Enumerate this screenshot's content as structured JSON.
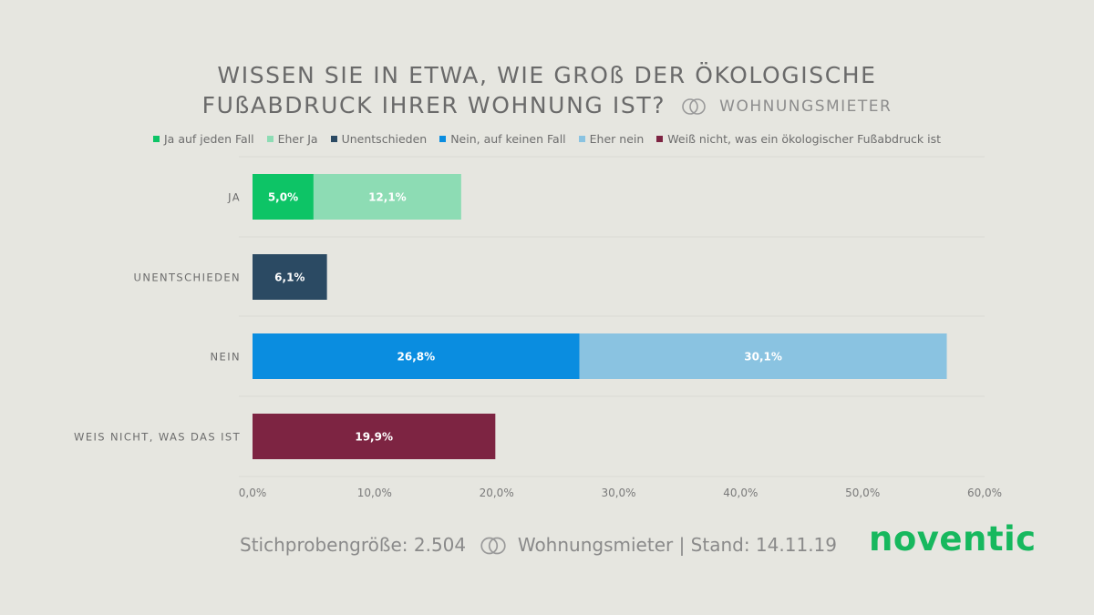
{
  "header": {
    "title_line1": "WISSEN SIE IN ETWA, WIE GROß DER ÖKOLOGISCHE",
    "title_line2": "FUßABDRUCK IHRER WOHNUNG IST?",
    "subtitle": "WOHNUNGSMIETER",
    "subtitle_icon": "two-circles-icon"
  },
  "legend": [
    {
      "label": "Ja auf jeden Fall",
      "color": "#0dc466"
    },
    {
      "label": "Eher Ja",
      "color": "#8ddcb4"
    },
    {
      "label": "Unentschieden",
      "color": "#2b4a63"
    },
    {
      "label": "Nein, auf keinen Fall",
      "color": "#0a8de0"
    },
    {
      "label": "Eher nein",
      "color": "#8ac3e1"
    },
    {
      "label": "Weiß nicht, was ein ökologischer Fußabdruck ist",
      "color": "#7d2442"
    }
  ],
  "chart_data": {
    "type": "bar",
    "orientation": "horizontal",
    "stacked": true,
    "categories": [
      "JA",
      "UNENTSCHIEDEN",
      "NEIN",
      "WEIS NICHT, WAS DAS IST"
    ],
    "series": [
      {
        "name": "Ja auf jeden Fall",
        "color": "#0dc466",
        "values": [
          5.0,
          0,
          0,
          0
        ],
        "labels": [
          "5,0%",
          "",
          "",
          ""
        ]
      },
      {
        "name": "Eher Ja",
        "color": "#8ddcb4",
        "values": [
          12.1,
          0,
          0,
          0
        ],
        "labels": [
          "12,1%",
          "",
          "",
          ""
        ]
      },
      {
        "name": "Unentschieden",
        "color": "#2b4a63",
        "values": [
          0,
          6.1,
          0,
          0
        ],
        "labels": [
          "",
          "6,1%",
          "",
          ""
        ]
      },
      {
        "name": "Nein, auf keinen Fall",
        "color": "#0a8de0",
        "values": [
          0,
          0,
          26.8,
          0
        ],
        "labels": [
          "",
          "",
          "26,8%",
          ""
        ]
      },
      {
        "name": "Eher nein",
        "color": "#8ac3e1",
        "values": [
          0,
          0,
          30.1,
          0
        ],
        "labels": [
          "",
          "",
          "30,1%",
          ""
        ]
      },
      {
        "name": "Weiß nicht, was ein ökologischer Fußabdruck ist",
        "color": "#7d2442",
        "values": [
          0,
          0,
          0,
          19.9
        ],
        "labels": [
          "",
          "",
          "",
          "19,9%"
        ]
      }
    ],
    "xlim": [
      0,
      60
    ],
    "xticks": [
      0,
      10,
      20,
      30,
      40,
      50,
      60
    ],
    "xtick_labels": [
      "0,0%",
      "10,0%",
      "20,0%",
      "30,0%",
      "40,0%",
      "50,0%",
      "60,0%"
    ],
    "grid": true,
    "legend_position": "top"
  },
  "footer": {
    "sample_label": "Stichprobengröße: 2.504",
    "group_label": "Wohnungsmieter",
    "date_label": "| Stand: 14.11.19",
    "icon": "two-circles-icon"
  },
  "brand": {
    "logo_text": "noventic",
    "color": "#17b85e"
  }
}
